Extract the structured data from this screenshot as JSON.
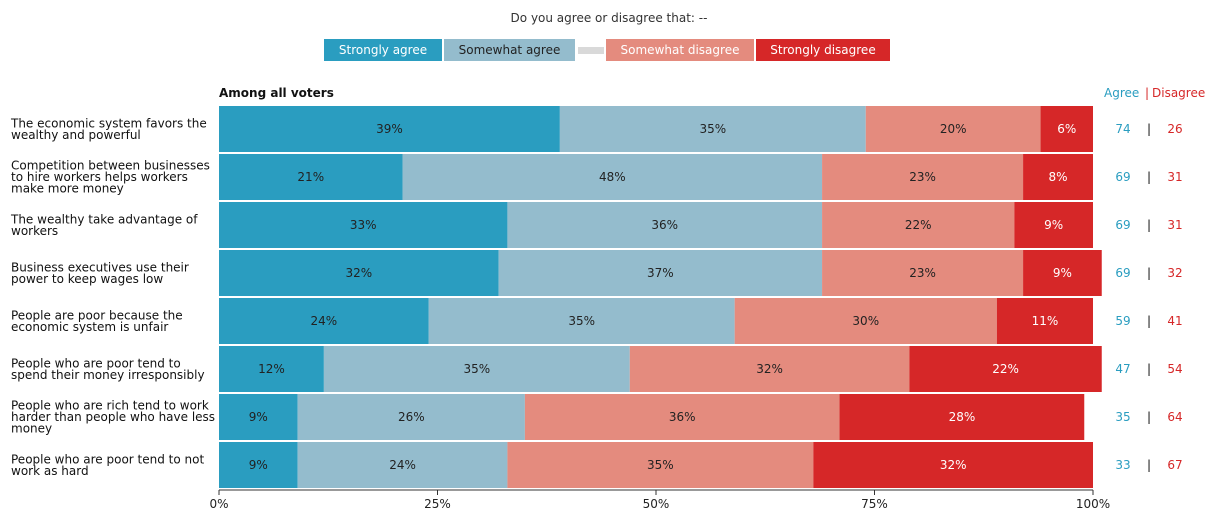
{
  "chart_data": {
    "type": "bar",
    "orientation": "horizontal",
    "stacked": true,
    "title": "Do you agree or disagree that: --",
    "subtitle": "Among all voters",
    "legend_position": "top",
    "categories": [
      "The economic system favors the wealthy and powerful",
      "Competition between businesses to hire workers helps workers make more money",
      "The wealthy take advantage of workers",
      "Business executives use their power to keep wages low",
      "People are poor because the economic system is unfair",
      "People who are poor tend to spend their money irresponsibly",
      "People who are rich tend to work harder than people who have less money",
      "People who are poor tend to not work as hard"
    ],
    "category_lines": [
      [
        "The economic system favors the",
        "wealthy and powerful"
      ],
      [
        "Competition between businesses",
        "to hire workers helps workers",
        "make more money"
      ],
      [
        "The wealthy take advantage of",
        "workers"
      ],
      [
        "Business executives use their",
        "power to keep wages low"
      ],
      [
        "People are poor because the",
        "economic system is unfair"
      ],
      [
        "People who are poor tend to",
        "spend their money irresponsibly"
      ],
      [
        "People who are rich tend to work",
        "harder than people who have less",
        "money"
      ],
      [
        "People who are poor tend to not",
        "work as hard"
      ]
    ],
    "series": [
      {
        "name": "Strongly agree",
        "color": "#2a9dc0",
        "values": [
          39,
          21,
          33,
          32,
          24,
          12,
          9,
          9
        ]
      },
      {
        "name": "Somewhat agree",
        "color": "#94bccd",
        "values": [
          35,
          48,
          36,
          37,
          35,
          35,
          26,
          24
        ]
      },
      {
        "name": "",
        "color": "#d9d9d9",
        "values": [
          0,
          0,
          0,
          0,
          0,
          0,
          0,
          0
        ]
      },
      {
        "name": "Somewhat disagree",
        "color": "#e48b7e",
        "values": [
          20,
          23,
          22,
          23,
          30,
          32,
          36,
          35
        ]
      },
      {
        "name": "Strongly disagree",
        "color": "#d62728",
        "values": [
          6,
          8,
          9,
          9,
          11,
          22,
          28,
          32
        ]
      }
    ],
    "totals": {
      "agree_label": "Agree",
      "disagree_label": "Disagree",
      "separator": "|",
      "agree_color": "#2a9dc0",
      "disagree_color": "#d62728",
      "agree": [
        74,
        69,
        69,
        69,
        59,
        47,
        35,
        33
      ],
      "disagree": [
        26,
        31,
        31,
        32,
        41,
        54,
        64,
        67
      ]
    },
    "x_ticks": [
      "0%",
      "25%",
      "50%",
      "75%",
      "100%"
    ],
    "xlim": [
      0,
      100
    ],
    "grid": false
  }
}
